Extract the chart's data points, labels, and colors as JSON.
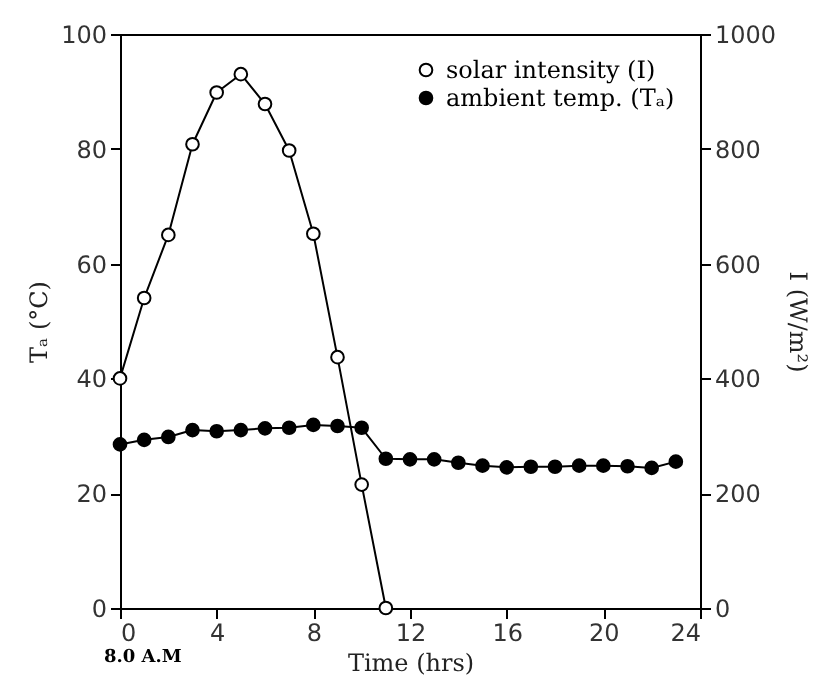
{
  "chart_data": {
    "type": "line",
    "xlabel": "Time (hrs)",
    "ylabel": "Tₐ (°C)",
    "y2label": "I (W/m²)",
    "annotations": [
      "8.0 A.M"
    ],
    "x": [
      0,
      1,
      2,
      3,
      4,
      5,
      6,
      7,
      8,
      9,
      10,
      11,
      12,
      13,
      14,
      15,
      16,
      17,
      18,
      19,
      20,
      21,
      22,
      23
    ],
    "series": [
      {
        "name": "solar intensity (I)",
        "color": "#000000",
        "axis": "y2",
        "x": [
          0,
          1,
          2,
          3,
          4,
          5,
          6,
          7,
          8,
          9,
          10,
          11
        ],
        "values": [
          400,
          540,
          650,
          808,
          898,
          930,
          878,
          797,
          652,
          437,
          215,
          0
        ]
      },
      {
        "name": "ambient temp. (Tₐ)",
        "color": "#000000",
        "values": [
          28.5,
          29.3,
          29.8,
          31,
          30.8,
          31,
          31.3,
          31.4,
          31.9,
          31.7,
          31.4,
          26,
          25.9,
          25.9,
          25.3,
          24.8,
          24.5,
          24.6,
          24.6,
          24.8,
          24.8,
          24.7,
          24.4,
          25.5
        ]
      }
    ],
    "xlim": [
      0,
      24
    ],
    "xticks": [
      0,
      4,
      8,
      12,
      16,
      20,
      24
    ],
    "ylim": [
      0,
      100
    ],
    "yticks": [
      0,
      20,
      40,
      60,
      80,
      100
    ],
    "y2lim": [
      0,
      1000
    ],
    "y2ticks": [
      0,
      200,
      400,
      600,
      800,
      1000
    ],
    "grid": false,
    "legend": "top right",
    "marker": "circle",
    "line_style": "solid"
  }
}
